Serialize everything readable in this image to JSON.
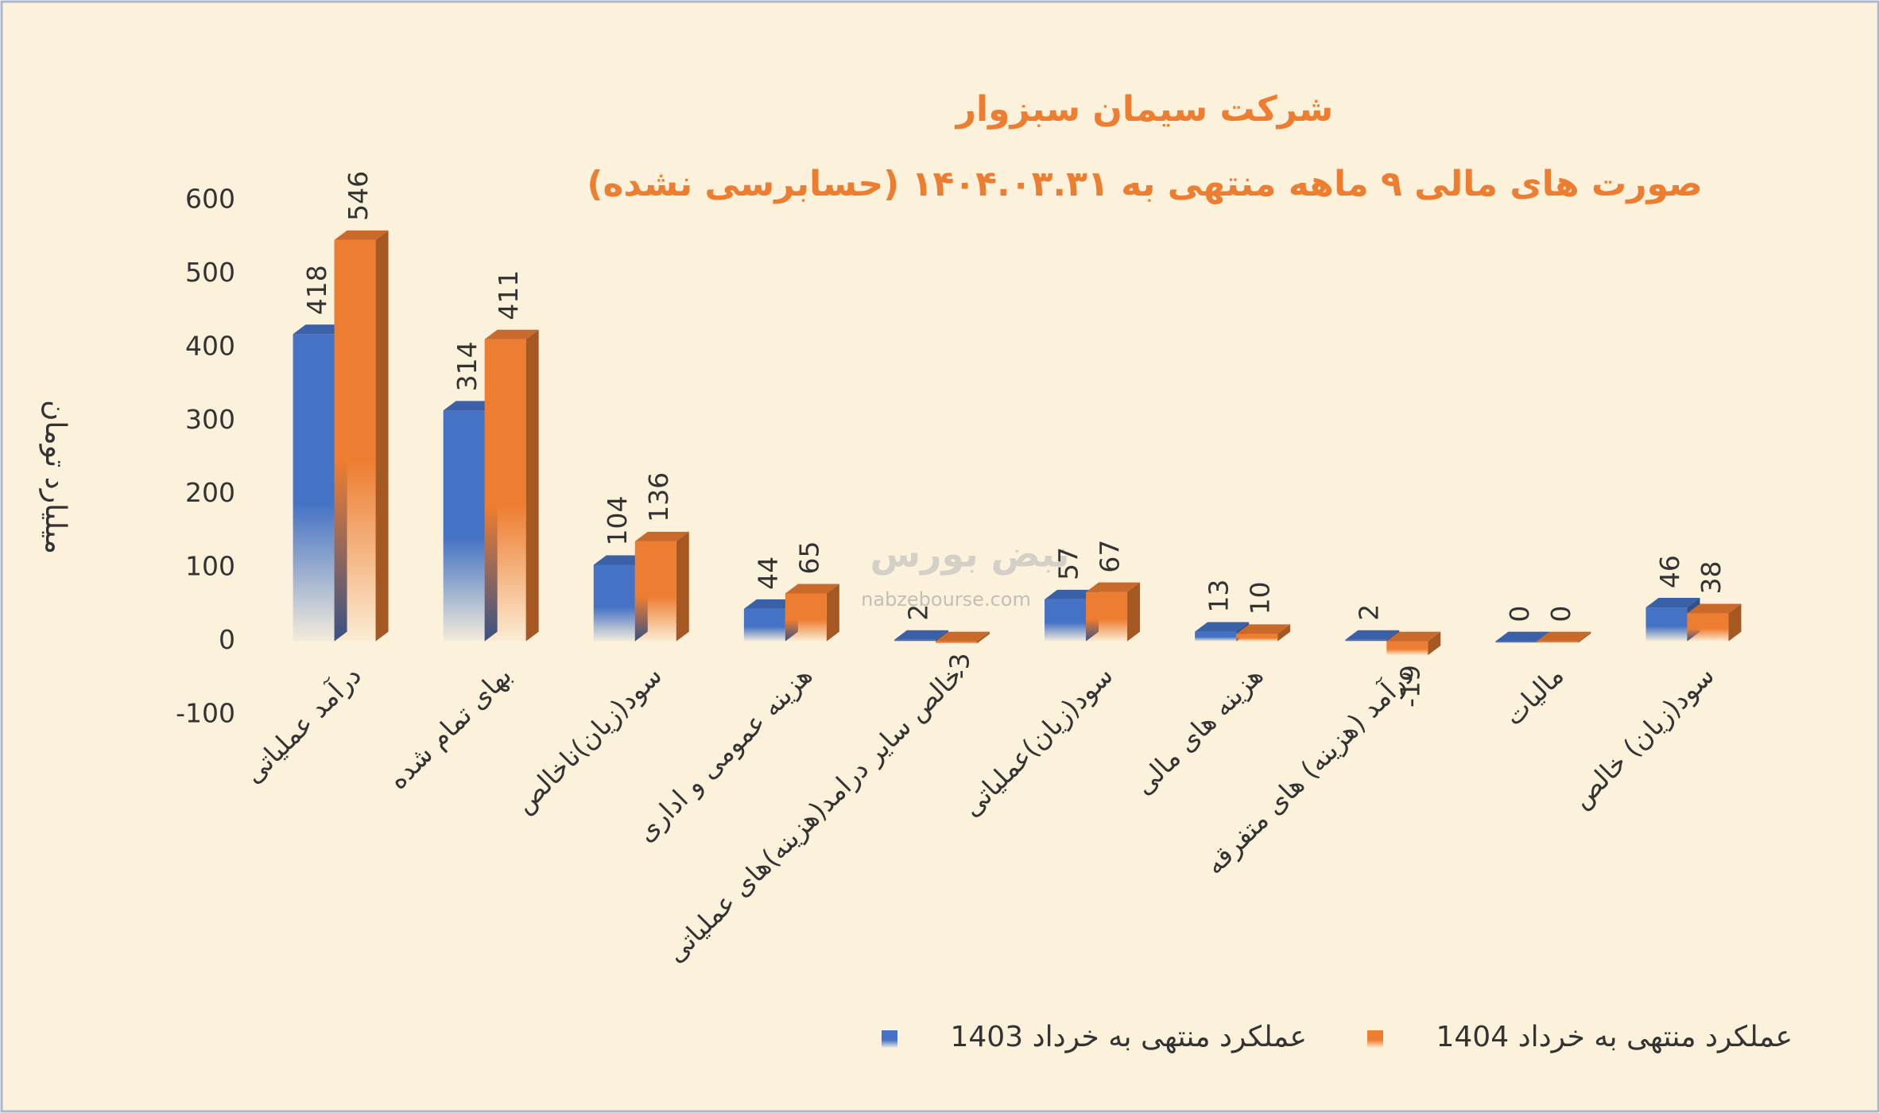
{
  "chart_data": {
    "type": "bar",
    "title": "شرکت سیمان سبزوار",
    "subtitle": "صورت های مالی ۹ ماهه منتهی به ۱۴۰۴.۰۳.۳۱ (حسابرسی نشده)",
    "y_label": "میلیارد تومان",
    "watermark": [
      "نبض بورس",
      "nabzebourse.com"
    ],
    "categories": [
      "درآمد عملیاتی",
      "بهای تمام شده",
      "سود(زیان)ناخالص",
      "هزینه عمومی و اداری",
      "خالص سایر درامد(هزینه)های عملیاتی",
      "سود(زیان)عملیاتی",
      "هزینه های مالی",
      "درآمد (هزینه) های متفرقه",
      "مالیات",
      "سود(زیان) خالص"
    ],
    "series": [
      {
        "name": "عملکرد منتهی به خرداد 1403",
        "color": "#4472c4",
        "values": [
          418,
          314,
          104,
          44,
          2,
          57,
          13,
          2,
          0,
          46
        ]
      },
      {
        "name": "عملکرد منتهی به خرداد 1404",
        "color": "#ed7d31",
        "values": [
          546,
          411,
          136,
          65,
          -3,
          67,
          10,
          -19,
          0,
          38
        ]
      }
    ],
    "ylim": [
      -100,
      600
    ],
    "yticks": [
      -100,
      0,
      100,
      200,
      300,
      400,
      500,
      600
    ],
    "legend": "bottom"
  }
}
